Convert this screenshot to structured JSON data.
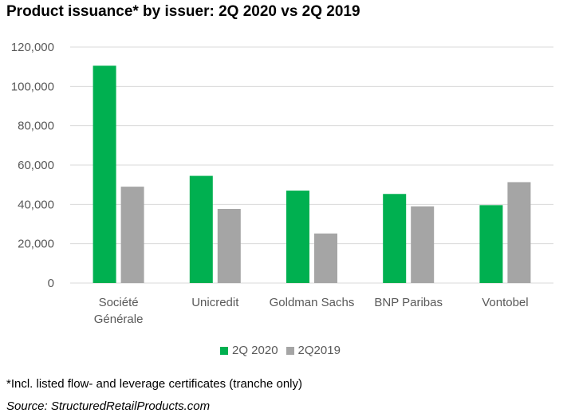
{
  "chart_data": {
    "type": "bar",
    "title": "Product issuance* by issuer: 2Q 2020 vs 2Q 2019",
    "categories": [
      [
        "Société",
        "Générale"
      ],
      [
        "Unicredit"
      ],
      [
        "Goldman Sachs"
      ],
      [
        "BNP Paribas"
      ],
      [
        "Vontobel"
      ]
    ],
    "series": [
      {
        "name": "2Q 2020",
        "color": "#00b050",
        "values": [
          110500,
          54500,
          47000,
          45300,
          39600
        ]
      },
      {
        "name": "2Q2019",
        "color": "#a5a5a5",
        "values": [
          49000,
          37700,
          25200,
          39000,
          51300
        ]
      }
    ],
    "y_ticks": [
      "0",
      "20,000",
      "40,000",
      "60,000",
      "80,000",
      "100,000",
      "120,000"
    ],
    "ylim": [
      0,
      120000
    ],
    "grid": true,
    "legend_position": "bottom"
  },
  "footnote": "*Incl. listed flow- and leverage certificates (tranche only)",
  "source": "Source: StructuredRetailProducts.com"
}
